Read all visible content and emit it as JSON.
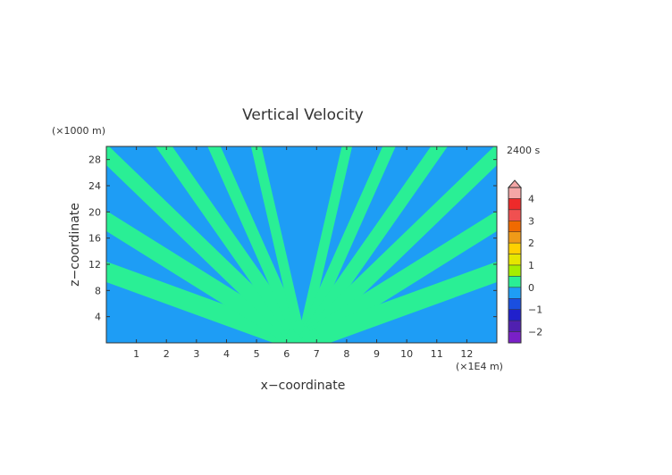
{
  "chart_data": {
    "type": "heatmap",
    "title": "Vertical Velocity",
    "xlabel": "x−coordinate",
    "ylabel": "z−coordinate",
    "x_unit": "(×1E4 m)",
    "y_unit": "(×1000 m)",
    "time_label": "2400 s",
    "xlim": [
      0,
      13
    ],
    "ylim": [
      0,
      30
    ],
    "x_ticks": [
      "1",
      "2",
      "3",
      "4",
      "5",
      "6",
      "7",
      "8",
      "9",
      "10",
      "11",
      "12"
    ],
    "y_ticks": [
      "4",
      "8",
      "12",
      "16",
      "20",
      "24",
      "28"
    ],
    "colorbar": {
      "labels": [
        "4",
        "3",
        "2",
        "1",
        "0",
        "−1",
        "−2"
      ],
      "colors": [
        "#f4a6a6",
        "#ee2a2a",
        "#f05050",
        "#f06a00",
        "#f09a18",
        "#ffd000",
        "#e6e600",
        "#a6ee00",
        "#2aef95",
        "#1e9df5",
        "#1a4fe0",
        "#2020cc",
        "#5020b0",
        "#7a20c8"
      ]
    },
    "field": {
      "background_value": "<0",
      "background_color": "#1e9df5",
      "band_value": "0 to 0.5",
      "band_color": "#2aef95"
    }
  }
}
